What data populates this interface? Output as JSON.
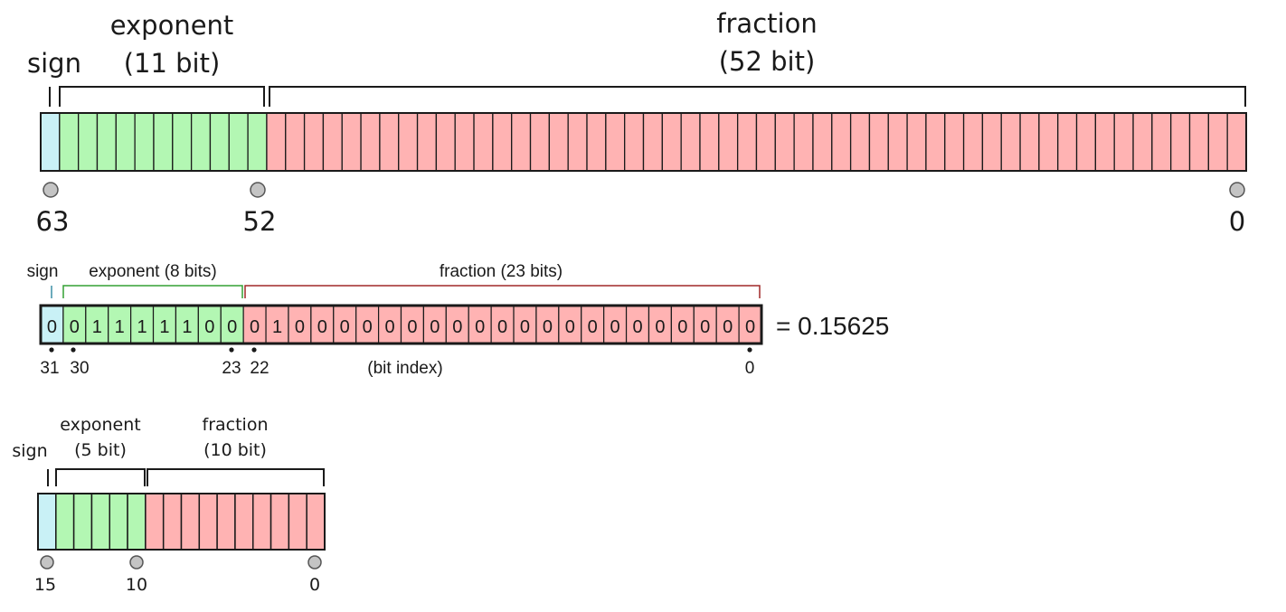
{
  "colors": {
    "sign": "#c9f1f6",
    "exponent": "#b3f7b3",
    "fraction": "#ffb3b3",
    "stroke": "#1a1a1a",
    "marker": "#c4c4c4",
    "single_sign_bracket": "#3a8fa6",
    "single_exponent_bracket": "#33a033",
    "single_fraction_bracket": "#a02828"
  },
  "double": {
    "sign_label": "sign",
    "exponent_label": "exponent",
    "exponent_bits_label": "(11 bit)",
    "fraction_label": "fraction",
    "fraction_bits_label": "(52 bit)",
    "sign_bits": 1,
    "exponent_bits": 11,
    "fraction_bits": 52,
    "index_labels": [
      "63",
      "52",
      "0"
    ]
  },
  "single": {
    "sign_label": "sign",
    "exponent_label": "exponent (8 bits)",
    "fraction_label": "fraction (23 bits)",
    "bits": [
      "0",
      "0",
      "1",
      "1",
      "1",
      "1",
      "1",
      "0",
      "0",
      "0",
      "1",
      "0",
      "0",
      "0",
      "0",
      "0",
      "0",
      "0",
      "0",
      "0",
      "0",
      "0",
      "0",
      "0",
      "0",
      "0",
      "0",
      "0",
      "0",
      "0",
      "0",
      "0"
    ],
    "value_label": "= 0.15625",
    "index_labels": [
      "31",
      "30",
      "23",
      "22",
      "0"
    ],
    "bit_index_caption": "(bit index)"
  },
  "half": {
    "sign_label": "sign",
    "exponent_label": "exponent",
    "exponent_bits_label": "(5 bit)",
    "fraction_label": "fraction",
    "fraction_bits_label": "(10 bit)",
    "sign_bits": 1,
    "exponent_bits": 5,
    "fraction_bits": 10,
    "index_labels": [
      "15",
      "10",
      "0"
    ]
  }
}
